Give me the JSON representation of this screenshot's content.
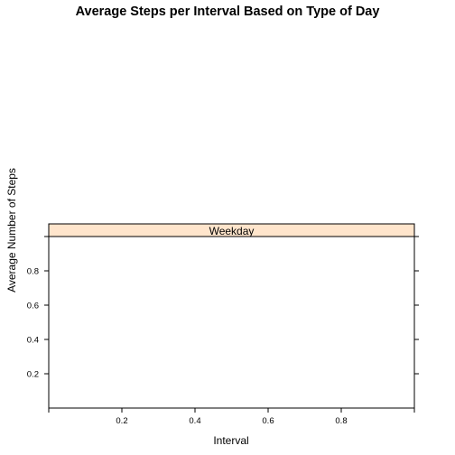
{
  "chart_data": {
    "type": "line",
    "title": "Average Steps per Interval Based on Type of Day",
    "xlabel": "Interval",
    "ylabel": "Average Number of Steps",
    "panels": [
      {
        "strip_label": "Weekday",
        "strip_color": "#ffe5cc",
        "series": []
      }
    ],
    "xlim": [
      0,
      1
    ],
    "ylim": [
      0,
      1
    ],
    "x_ticks": [
      0.2,
      0.4,
      0.6,
      0.8
    ],
    "x_tick_labels": [
      "0.2",
      "0.4",
      "0.6",
      "0.8"
    ],
    "y_ticks": [
      0.2,
      0.4,
      0.6,
      0.8
    ],
    "y_tick_labels": [
      "0.2",
      "0.4",
      "0.6",
      "0.8"
    ],
    "grid": false,
    "legend": "none"
  }
}
